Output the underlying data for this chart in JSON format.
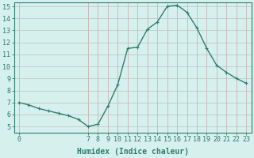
{
  "xlabel": "Humidex (Indice chaleur)",
  "x_data": [
    0,
    1,
    2,
    3,
    4,
    5,
    6,
    7,
    8,
    9,
    10,
    11,
    12,
    13,
    14,
    15,
    16,
    17,
    18,
    19,
    20,
    21,
    22,
    23
  ],
  "y_data": [
    7.0,
    6.8,
    6.5,
    6.3,
    6.1,
    5.9,
    5.6,
    5.0,
    5.2,
    6.7,
    8.5,
    11.5,
    11.6,
    13.1,
    13.7,
    15.0,
    15.1,
    14.5,
    13.2,
    11.5,
    10.1,
    9.5,
    9.0,
    8.6
  ],
  "line_color": "#2e7d6e",
  "marker": "P",
  "marker_size": 2.5,
  "bg_color": "#d6f0ee",
  "grid_color_v": "#c8a8a8",
  "grid_color_h": "#c0c0b8",
  "ylim_min": 4.5,
  "ylim_max": 15.3,
  "xlim_min": -0.5,
  "xlim_max": 23.5,
  "yticks": [
    5,
    6,
    7,
    8,
    9,
    10,
    11,
    12,
    13,
    14,
    15
  ],
  "xticks": [
    0,
    7,
    8,
    9,
    10,
    11,
    12,
    13,
    14,
    15,
    16,
    17,
    18,
    19,
    20,
    21,
    22,
    23
  ],
  "font_name": "monospace",
  "xlabel_fontsize": 7,
  "tick_fontsize": 6,
  "linewidth": 1.0
}
